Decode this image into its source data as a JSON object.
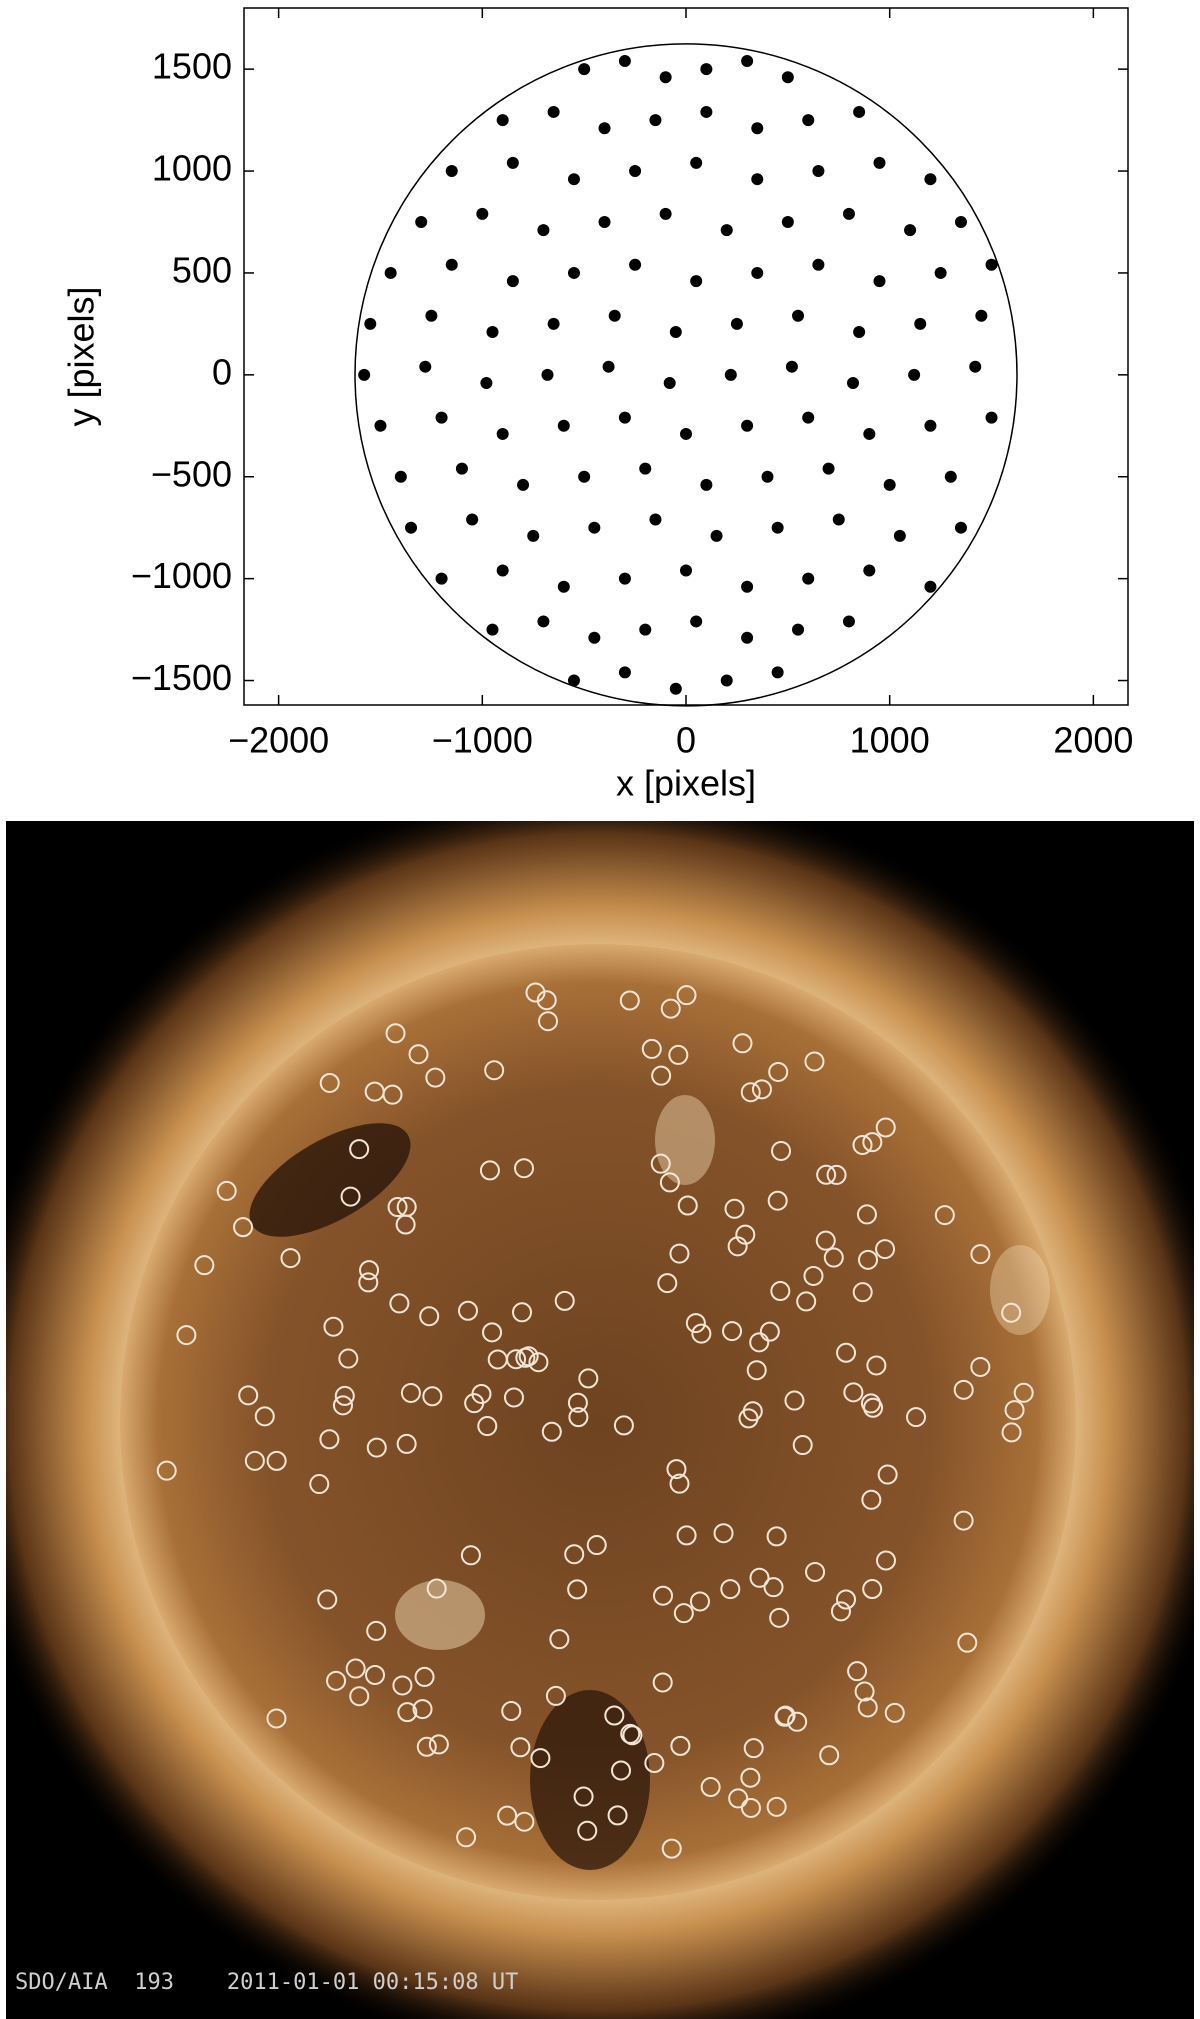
{
  "chart_data": [
    {
      "type": "scatter",
      "xlabel": "x [pixels]",
      "ylabel": "y [pixels]",
      "xlim": [
        -2170,
        2170
      ],
      "ylim": [
        -1620,
        1800
      ],
      "xticks": [
        {
          "value": -2000,
          "label": "−2000"
        },
        {
          "value": -1000,
          "label": "−1000"
        },
        0,
        1000,
        2000
      ],
      "yticks": [
        {
          "value": -1500,
          "label": "−1500"
        },
        {
          "value": -1000,
          "label": "−1000"
        },
        {
          "value": -500,
          "label": "−500"
        },
        0,
        500,
        1000,
        1500
      ],
      "color": "#000000",
      "limb_radius": 1625,
      "x": [
        -500,
        -300,
        -100,
        100,
        300,
        500,
        -900,
        -650,
        -400,
        -150,
        100,
        350,
        600,
        850,
        -1150,
        -850,
        -550,
        -250,
        50,
        350,
        650,
        950,
        1200,
        -1300,
        -1000,
        -700,
        -400,
        -100,
        200,
        500,
        800,
        1100,
        1350,
        -1450,
        -1150,
        -850,
        -550,
        -250,
        50,
        350,
        650,
        950,
        1250,
        1500,
        -1550,
        -1250,
        -950,
        -650,
        -350,
        -50,
        250,
        550,
        850,
        1150,
        1450,
        -1580,
        -1280,
        -980,
        -680,
        -380,
        -80,
        220,
        520,
        820,
        1120,
        1420,
        -1500,
        -1200,
        -900,
        -600,
        -300,
        0,
        300,
        600,
        900,
        1200,
        1500,
        -1400,
        -1100,
        -800,
        -500,
        -200,
        100,
        400,
        700,
        1000,
        1300,
        -1350,
        -1050,
        -750,
        -450,
        -150,
        150,
        450,
        750,
        1050,
        1350,
        -1200,
        -900,
        -600,
        -300,
        0,
        300,
        600,
        900,
        1200,
        -950,
        -700,
        -450,
        -200,
        50,
        300,
        550,
        800,
        -550,
        -300,
        -50,
        200,
        450
      ],
      "values": [
        1500,
        1540,
        1460,
        1500,
        1540,
        1460,
        1250,
        1290,
        1210,
        1250,
        1290,
        1210,
        1250,
        1290,
        1000,
        1040,
        960,
        1000,
        1040,
        960,
        1000,
        1040,
        960,
        750,
        790,
        710,
        750,
        790,
        710,
        750,
        790,
        710,
        750,
        500,
        540,
        460,
        500,
        540,
        460,
        500,
        540,
        460,
        500,
        540,
        250,
        290,
        210,
        250,
        290,
        210,
        250,
        290,
        210,
        250,
        290,
        0,
        40,
        -40,
        0,
        40,
        -40,
        0,
        40,
        -40,
        0,
        40,
        -250,
        -210,
        -290,
        -250,
        -210,
        -290,
        -250,
        -210,
        -290,
        -250,
        -210,
        -500,
        -460,
        -540,
        -500,
        -460,
        -540,
        -500,
        -460,
        -540,
        -500,
        -750,
        -710,
        -790,
        -750,
        -710,
        -790,
        -750,
        -710,
        -790,
        -750,
        -1000,
        -960,
        -1040,
        -1000,
        -960,
        -1040,
        -1000,
        -960,
        -1040,
        -1250,
        -1210,
        -1290,
        -1250,
        -1210,
        -1290,
        -1250,
        -1210,
        -1500,
        -1460,
        -1540,
        -1500,
        -1460
      ]
    },
    {
      "type": "image",
      "caption": "SDO/AIA  193    2011-01-01 00:15:08 UT"
    }
  ]
}
